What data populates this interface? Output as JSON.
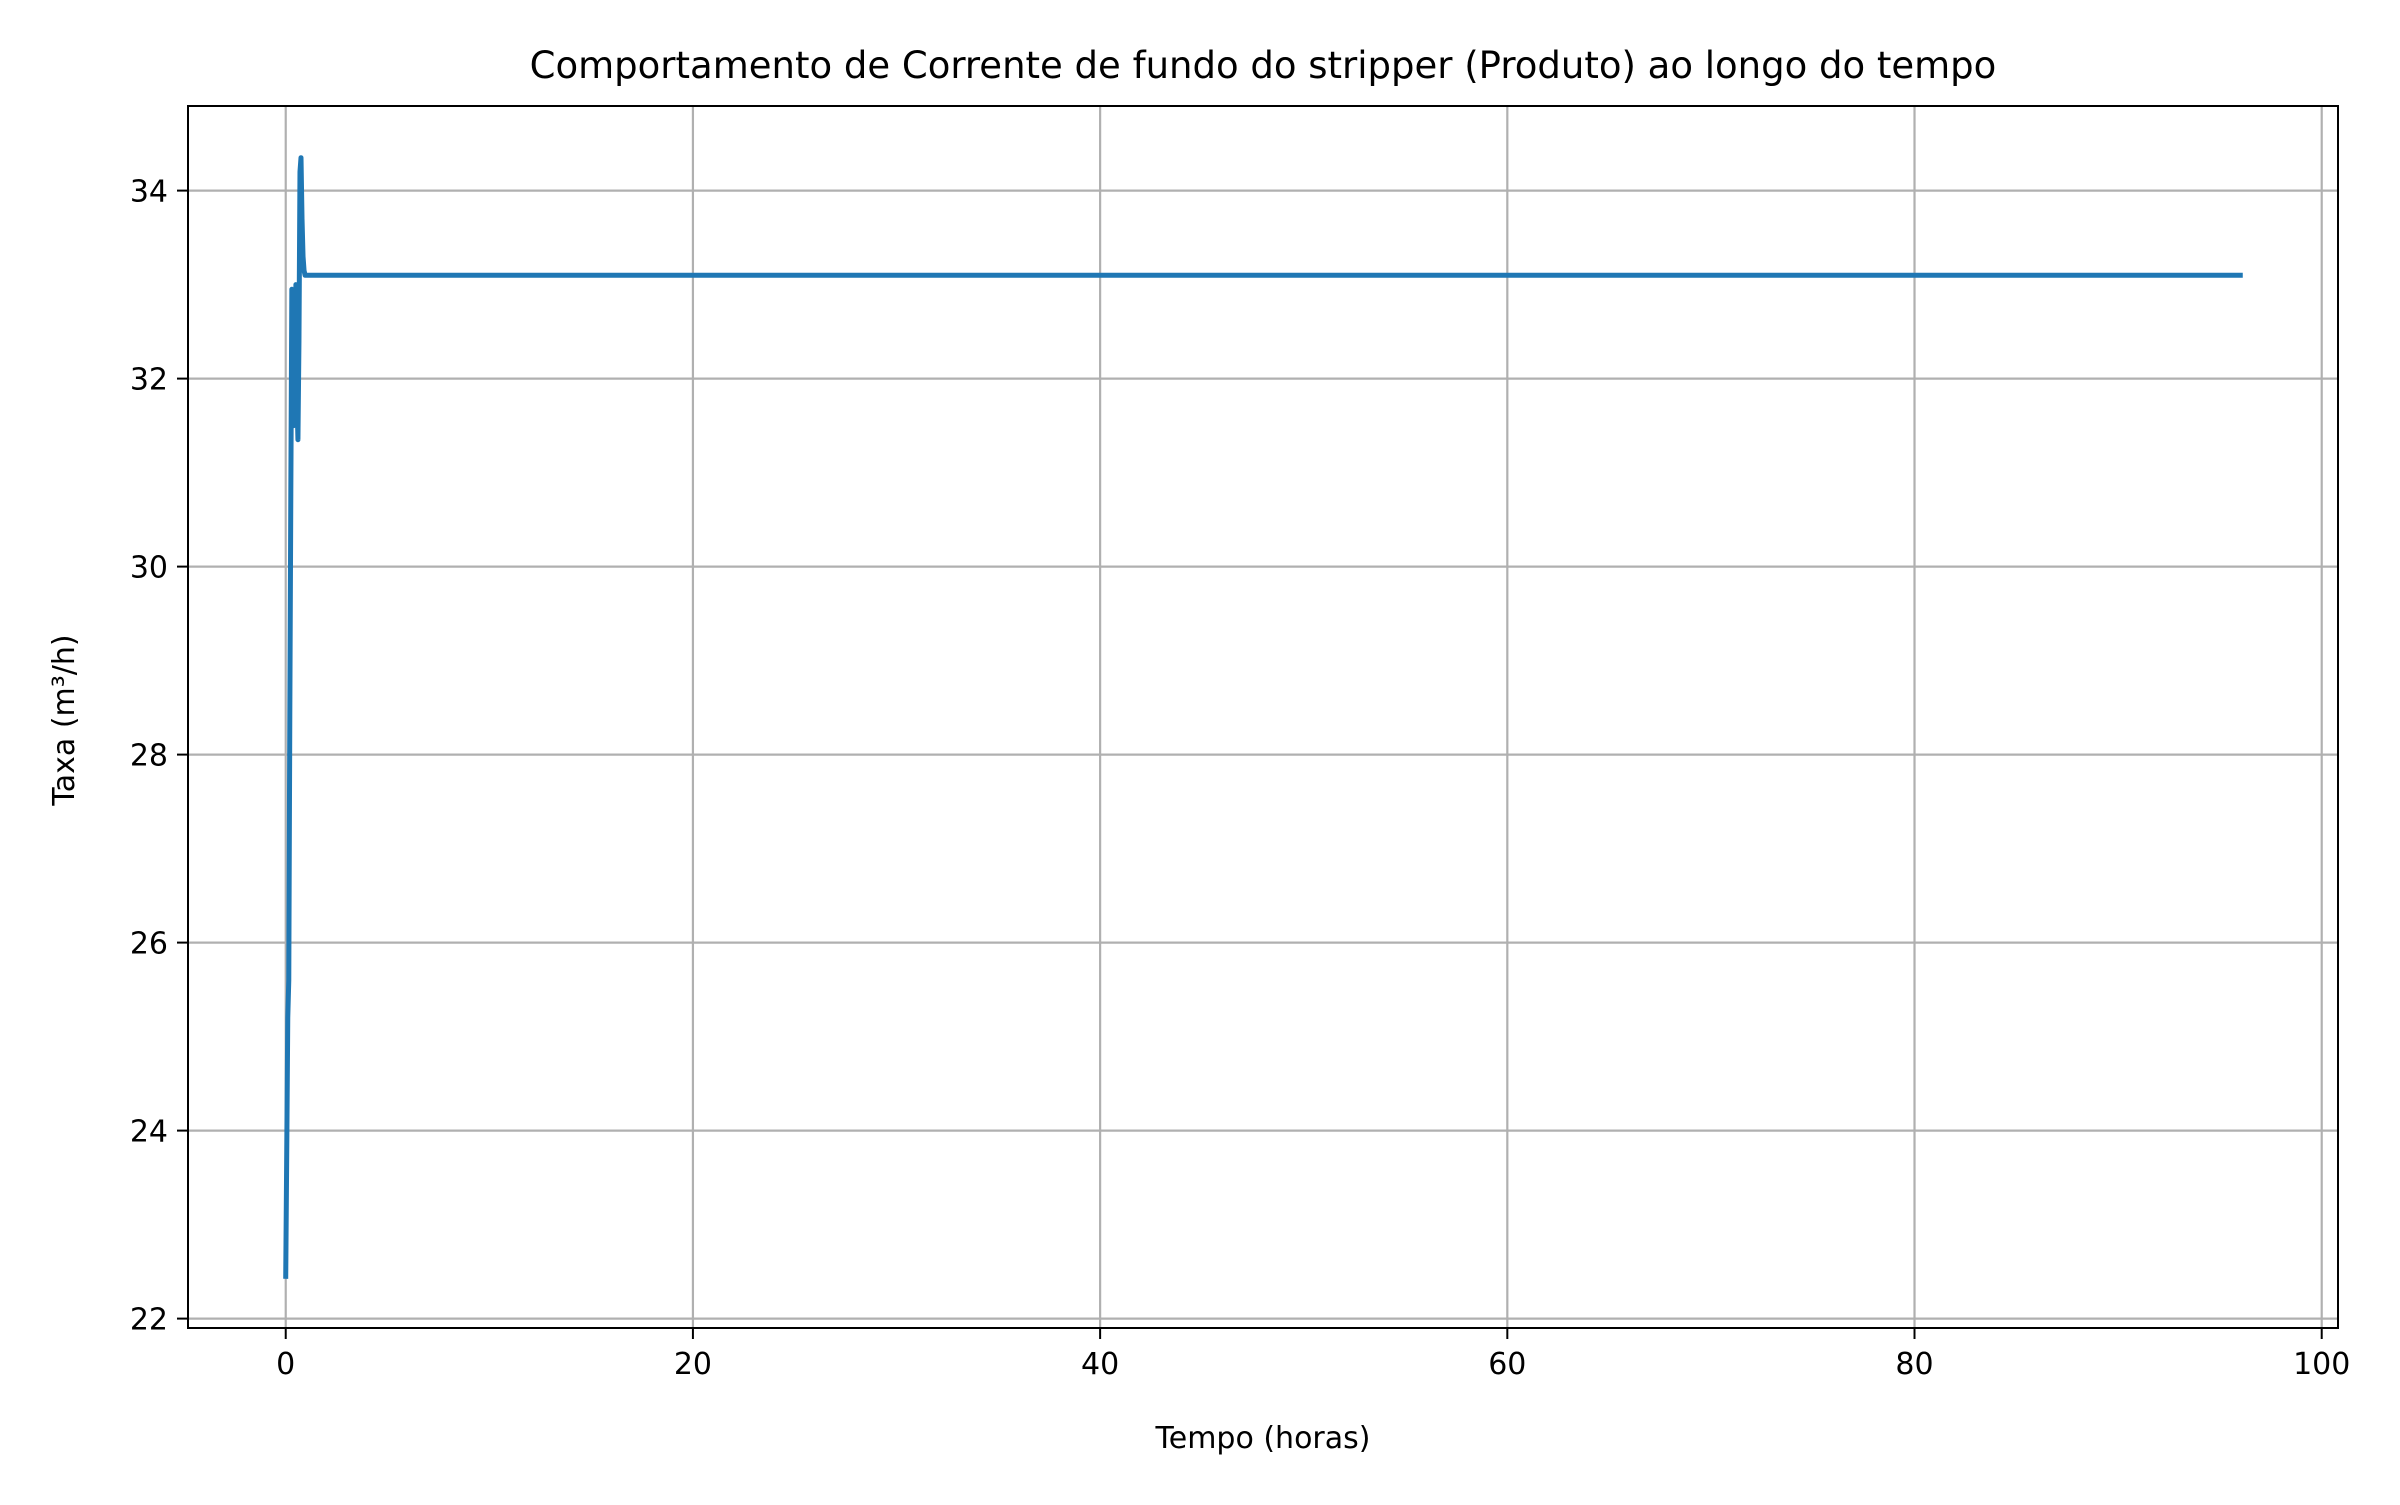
{
  "chart_data": {
    "type": "line",
    "title": "Comportamento de Corrente de fundo do stripper (Produto) ao longo do tempo",
    "xlabel": "Tempo (horas)",
    "ylabel": "Taxa (m³/h)",
    "xlim": [
      -4.8,
      100.8
    ],
    "ylim": [
      21.9,
      34.9
    ],
    "xticks": [
      0,
      20,
      40,
      60,
      80,
      100
    ],
    "yticks": [
      22,
      24,
      26,
      28,
      30,
      32,
      34
    ],
    "grid": true,
    "series": [
      {
        "color": "#1f77b4",
        "x": [
          0.0,
          0.05,
          0.1,
          0.15,
          0.2,
          0.25,
          0.3,
          0.35,
          0.4,
          0.45,
          0.5,
          0.55,
          0.6,
          0.65,
          0.7,
          0.75,
          0.8,
          0.85,
          0.9,
          0.95,
          1.0,
          1.2,
          2.0,
          5.0,
          10.0,
          20.0,
          30.0,
          40.0,
          50.0,
          60.0,
          70.0,
          80.0,
          90.0,
          96.0
        ],
        "y": [
          22.45,
          23.8,
          25.2,
          25.6,
          28.4,
          30.8,
          32.95,
          32.3,
          31.5,
          32.5,
          33.0,
          31.8,
          31.35,
          32.4,
          34.2,
          34.35,
          33.7,
          33.3,
          33.15,
          33.1,
          33.1,
          33.1,
          33.1,
          33.1,
          33.1,
          33.1,
          33.1,
          33.1,
          33.1,
          33.1,
          33.1,
          33.1,
          33.1,
          33.1
        ]
      }
    ]
  }
}
